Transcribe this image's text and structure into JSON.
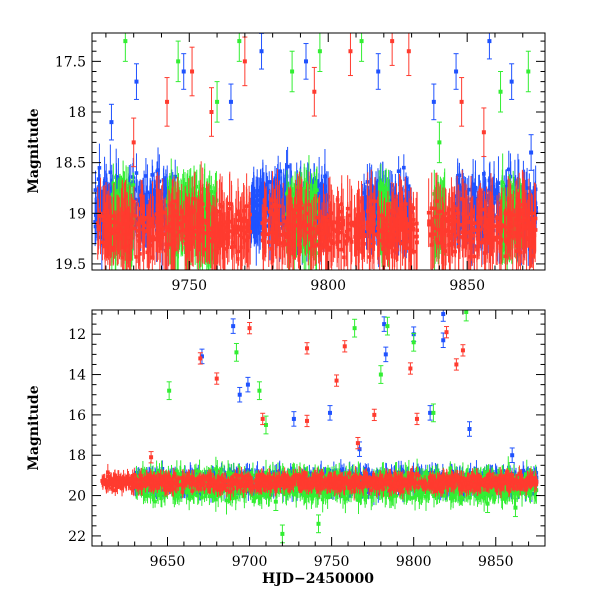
{
  "colors": {
    "blue": "#1f52ff",
    "green": "#33ee33",
    "red": "#ff3b2f"
  },
  "chart_data": [
    {
      "type": "scatter",
      "name": "top-panel",
      "title": "",
      "xlabel": "",
      "ylabel": "Magnitude",
      "xlim": [
        9715,
        9878
      ],
      "ylim": [
        19.56,
        17.22
      ],
      "x_ticks": [
        9750,
        9800,
        9850
      ],
      "x_tick_labels": [
        "9750",
        "9800",
        "9850"
      ],
      "y_ticks": [
        17.5,
        18,
        18.5,
        19,
        19.5
      ],
      "y_tick_labels": [
        "17.5",
        "18",
        "18.5",
        "19",
        "19.5"
      ],
      "series": [
        {
          "name": "blue",
          "color": "#1f52ff",
          "spans": [
            [
              9716,
              9725
            ],
            [
              9728,
              9745
            ],
            [
              9772,
              9800
            ],
            [
              9812,
              9830
            ],
            [
              9845,
              9875
            ]
          ],
          "center": 18.95,
          "spread": 0.45,
          "error": 0.22,
          "outliers": [
            [
              9731,
              17.7
            ],
            [
              9748,
              17.6
            ],
            [
              9765,
              17.9
            ],
            [
              9776,
              17.4
            ],
            [
              9792,
              17.5
            ],
            [
              9818,
              17.6
            ],
            [
              9838,
              17.9
            ],
            [
              9846,
              17.6
            ],
            [
              9858,
              17.3
            ],
            [
              9866,
              17.7
            ],
            [
              9873,
              18.4
            ],
            [
              9722,
              18.1
            ]
          ]
        },
        {
          "name": "green",
          "color": "#33ee33",
          "spans": [
            [
              9722,
              9730
            ],
            [
              9742,
              9760
            ],
            [
              9785,
              9796
            ],
            [
              9818,
              9822
            ],
            [
              9838,
              9842
            ],
            [
              9862,
              9870
            ]
          ],
          "center": 19.05,
          "spread": 0.4,
          "error": 0.25,
          "outliers": [
            [
              9727,
              17.3
            ],
            [
              9746,
              17.5
            ],
            [
              9760,
              17.9
            ],
            [
              9768,
              17.3
            ],
            [
              9787,
              17.6
            ],
            [
              9797,
              17.4
            ],
            [
              9812,
              17.3
            ],
            [
              9840,
              18.3
            ],
            [
              9862,
              17.8
            ],
            [
              9872,
              17.6
            ]
          ]
        },
        {
          "name": "red",
          "color": "#ff3b2f",
          "spans": [
            [
              9716,
              9772
            ],
            [
              9776,
              9832
            ],
            [
              9836,
              9875
            ]
          ],
          "center": 19.15,
          "spread": 0.35,
          "error": 0.3,
          "outliers": [
            [
              9730,
              18.3
            ],
            [
              9742,
              17.9
            ],
            [
              9751,
              17.6
            ],
            [
              9758,
              18.0
            ],
            [
              9770,
              17.5
            ],
            [
              9795,
              17.8
            ],
            [
              9808,
              17.4
            ],
            [
              9823,
              17.3
            ],
            [
              9829,
              17.4
            ],
            [
              9848,
              17.9
            ],
            [
              9856,
              18.2
            ]
          ]
        }
      ]
    },
    {
      "type": "scatter",
      "name": "bottom-panel",
      "title": "",
      "xlabel": "HJD−2450000",
      "ylabel": "Magnitude",
      "xlim": [
        9604,
        9880
      ],
      "ylim": [
        22.5,
        10.8
      ],
      "x_ticks": [
        9650,
        9700,
        9750,
        9800,
        9850
      ],
      "x_tick_labels": [
        "9650",
        "9700",
        "9750",
        "9800",
        "9850"
      ],
      "y_ticks": [
        12,
        14,
        16,
        18,
        20,
        22
      ],
      "y_tick_labels": [
        "12",
        "14",
        "16",
        "18",
        "20",
        "22"
      ],
      "series": [
        {
          "name": "blue",
          "color": "#1f52ff",
          "spans": [
            [
              9630,
              9875
            ]
          ],
          "center": 19.3,
          "spread": 0.7,
          "error": 0.45,
          "outliers": [
            [
              9671,
              13.1
            ],
            [
              9690,
              11.6
            ],
            [
              9699,
              14.5
            ],
            [
              9694,
              15.0
            ],
            [
              9705,
              19.3
            ],
            [
              9727,
              16.2
            ],
            [
              9749,
              15.9
            ],
            [
              9767,
              17.7
            ],
            [
              9782,
              11.5
            ],
            [
              9783,
              13.0
            ],
            [
              9800,
              12.0
            ],
            [
              9810,
              15.9
            ],
            [
              9818,
              12.3
            ],
            [
              9818,
              11.0
            ],
            [
              9834,
              16.7
            ],
            [
              9860,
              18.0
            ]
          ]
        },
        {
          "name": "green",
          "color": "#33ee33",
          "spans": [
            [
              9630,
              9875
            ]
          ],
          "center": 19.5,
          "spread": 0.9,
          "error": 0.55,
          "outliers": [
            [
              9651,
              14.8
            ],
            [
              9692,
              12.9
            ],
            [
              9706,
              14.8
            ],
            [
              9710,
              16.5
            ],
            [
              9716,
              20.3
            ],
            [
              9720,
              21.9
            ],
            [
              9729,
              19.3
            ],
            [
              9742,
              21.4
            ],
            [
              9764,
              11.7
            ],
            [
              9780,
              14.0
            ],
            [
              9784,
              11.6
            ],
            [
              9800,
              12.4
            ],
            [
              9812,
              15.9
            ],
            [
              9832,
              10.9
            ],
            [
              9845,
              20.4
            ],
            [
              9862,
              20.6
            ]
          ]
        },
        {
          "name": "red",
          "color": "#ff3b2f",
          "spans": [
            [
              9610,
              9875
            ]
          ],
          "center": 19.35,
          "spread": 0.55,
          "error": 0.35,
          "outliers": [
            [
              9640,
              18.1
            ],
            [
              9670,
              13.2
            ],
            [
              9680,
              14.2
            ],
            [
              9700,
              11.7
            ],
            [
              9708,
              16.2
            ],
            [
              9735,
              12.7
            ],
            [
              9735,
              16.3
            ],
            [
              9753,
              14.3
            ],
            [
              9758,
              12.6
            ],
            [
              9766,
              17.4
            ],
            [
              9776,
              16.0
            ],
            [
              9798,
              13.7
            ],
            [
              9802,
              16.2
            ],
            [
              9820,
              11.9
            ],
            [
              9826,
              13.5
            ],
            [
              9830,
              12.8
            ]
          ]
        }
      ]
    }
  ]
}
